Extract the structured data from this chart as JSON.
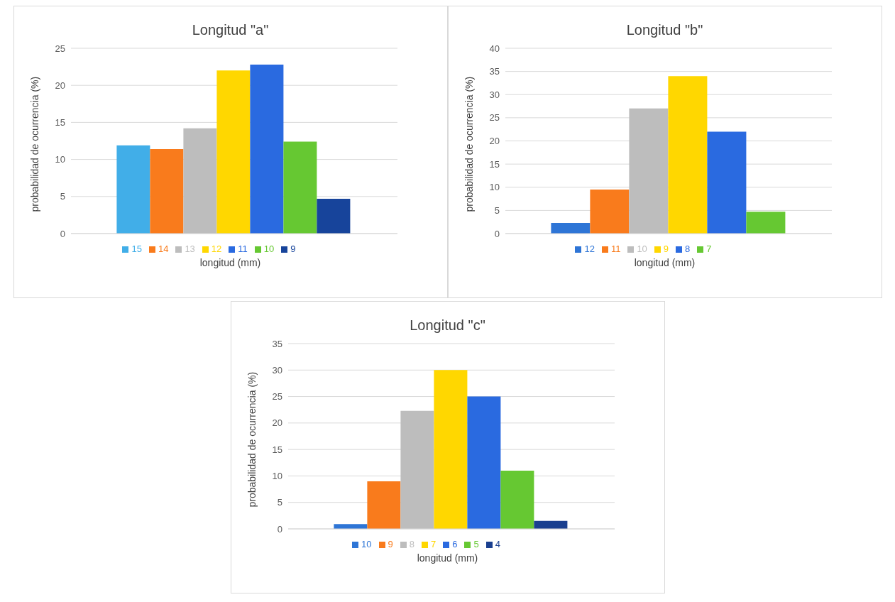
{
  "chart_data": [
    {
      "type": "bar",
      "title": "Longitud \"a\"",
      "xlabel": "longitud (mm)",
      "ylabel": "probabilidad de ocurrencia (%)",
      "categories": [
        null
      ],
      "ylim": [
        0,
        25
      ],
      "yticks": [
        0,
        5,
        10,
        15,
        20,
        25
      ],
      "grid": "y",
      "legend": "bottom",
      "series": [
        {
          "name": "15",
          "color": "#41aee8",
          "values": [
            11.9
          ]
        },
        {
          "name": "14",
          "color": "#f97b1c",
          "values": [
            11.4
          ]
        },
        {
          "name": "13",
          "color": "#bdbdbd",
          "values": [
            14.2
          ]
        },
        {
          "name": "12",
          "color": "#ffd700",
          "values": [
            22.0
          ]
        },
        {
          "name": "11",
          "color": "#2a6ae0",
          "values": [
            22.8
          ]
        },
        {
          "name": "10",
          "color": "#66c832",
          "values": [
            12.4
          ]
        },
        {
          "name": "9",
          "color": "#17449b",
          "values": [
            4.7
          ]
        }
      ]
    },
    {
      "type": "bar",
      "title": "Longitud \"b\"",
      "xlabel": "longitud (mm)",
      "ylabel": "probabilidad de ocurrencia (%)",
      "categories": [
        null
      ],
      "ylim": [
        0,
        40
      ],
      "yticks": [
        0,
        5,
        10,
        15,
        20,
        25,
        30,
        35,
        40
      ],
      "grid": "y",
      "legend": "bottom",
      "series": [
        {
          "name": "12",
          "color": "#2e75d6",
          "values": [
            2.3
          ]
        },
        {
          "name": "11",
          "color": "#f97b1c",
          "values": [
            9.5
          ]
        },
        {
          "name": "10",
          "color": "#bdbdbd",
          "values": [
            27.0
          ]
        },
        {
          "name": "9",
          "color": "#ffd700",
          "values": [
            34.0
          ]
        },
        {
          "name": "8",
          "color": "#2a6ae0",
          "values": [
            22.0
          ]
        },
        {
          "name": "7",
          "color": "#66c832",
          "values": [
            4.7
          ]
        }
      ]
    },
    {
      "type": "bar",
      "title": "Longitud \"c\"",
      "xlabel": "longitud (mm)",
      "ylabel": "probabilidad de ocurrencia (%)",
      "categories": [
        null
      ],
      "ylim": [
        0,
        35
      ],
      "yticks": [
        0,
        5,
        10,
        15,
        20,
        25,
        30,
        35
      ],
      "grid": "y",
      "legend": "bottom",
      "series": [
        {
          "name": "10",
          "color": "#2e75d6",
          "values": [
            0.9
          ]
        },
        {
          "name": "9",
          "color": "#f97b1c",
          "values": [
            9.0
          ]
        },
        {
          "name": "8",
          "color": "#bdbdbd",
          "values": [
            22.3
          ]
        },
        {
          "name": "7",
          "color": "#ffd700",
          "values": [
            30.0
          ]
        },
        {
          "name": "6",
          "color": "#2a6ae0",
          "values": [
            25.0
          ]
        },
        {
          "name": "5",
          "color": "#66c832",
          "values": [
            11.0
          ]
        },
        {
          "name": "4",
          "color": "#1a3f8f",
          "values": [
            1.5
          ]
        }
      ]
    }
  ]
}
